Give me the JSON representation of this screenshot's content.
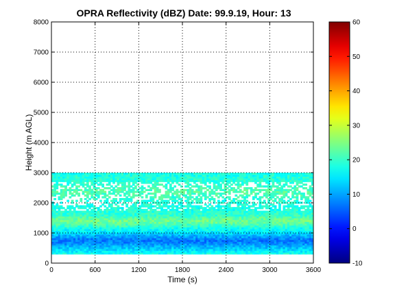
{
  "chart_data": {
    "type": "heatmap",
    "title": "OPRA Reflectivity (dBZ)  Date: 99.9.19, Hour: 13",
    "xlabel": "Time (s)",
    "ylabel": "Height (m AGL)",
    "xlim": [
      0,
      3600
    ],
    "ylim": [
      0,
      8000
    ],
    "xticks": [
      "0",
      "600",
      "1200",
      "1800",
      "2400",
      "3000",
      "3600"
    ],
    "yticks": [
      "0",
      "1000",
      "2000",
      "3000",
      "4000",
      "5000",
      "6000",
      "7000",
      "8000"
    ],
    "grid": true,
    "colormap": "jet",
    "colorbar": {
      "min": -10,
      "max": 60,
      "ticks": [
        "-10",
        "0",
        "10",
        "20",
        "30",
        "40",
        "50",
        "60"
      ]
    },
    "data_extent": {
      "x": [
        0,
        3600
      ],
      "y": [
        300,
        3000
      ]
    },
    "profile": [
      {
        "height": 300,
        "dbz": 17
      },
      {
        "height": 450,
        "dbz": 13
      },
      {
        "height": 550,
        "dbz": 11
      },
      {
        "height": 650,
        "dbz": 8
      },
      {
        "height": 750,
        "dbz": 7
      },
      {
        "height": 850,
        "dbz": 10
      },
      {
        "height": 950,
        "dbz": 13
      },
      {
        "height": 1050,
        "dbz": 16
      },
      {
        "height": 1150,
        "dbz": 18
      },
      {
        "height": 1250,
        "dbz": 21
      },
      {
        "height": 1350,
        "dbz": 24
      },
      {
        "height": 1450,
        "dbz": 23
      },
      {
        "height": 1550,
        "dbz": 20
      },
      {
        "height": 1650,
        "dbz": 19
      },
      {
        "height": 1750,
        "dbz": 18
      },
      {
        "height": 1850,
        "dbz": 18
      },
      {
        "height": 1950,
        "dbz": 19
      },
      {
        "height": 2050,
        "dbz": 19
      },
      {
        "height": 2150,
        "dbz": 20
      },
      {
        "height": 2250,
        "dbz": 21
      },
      {
        "height": 2350,
        "dbz": 22
      },
      {
        "height": 2450,
        "dbz": 21
      },
      {
        "height": 2550,
        "dbz": 20
      },
      {
        "height": 2650,
        "dbz": 19
      },
      {
        "height": 2750,
        "dbz": 19
      },
      {
        "height": 2850,
        "dbz": 18
      },
      {
        "height": 2950,
        "dbz": 18
      }
    ]
  }
}
